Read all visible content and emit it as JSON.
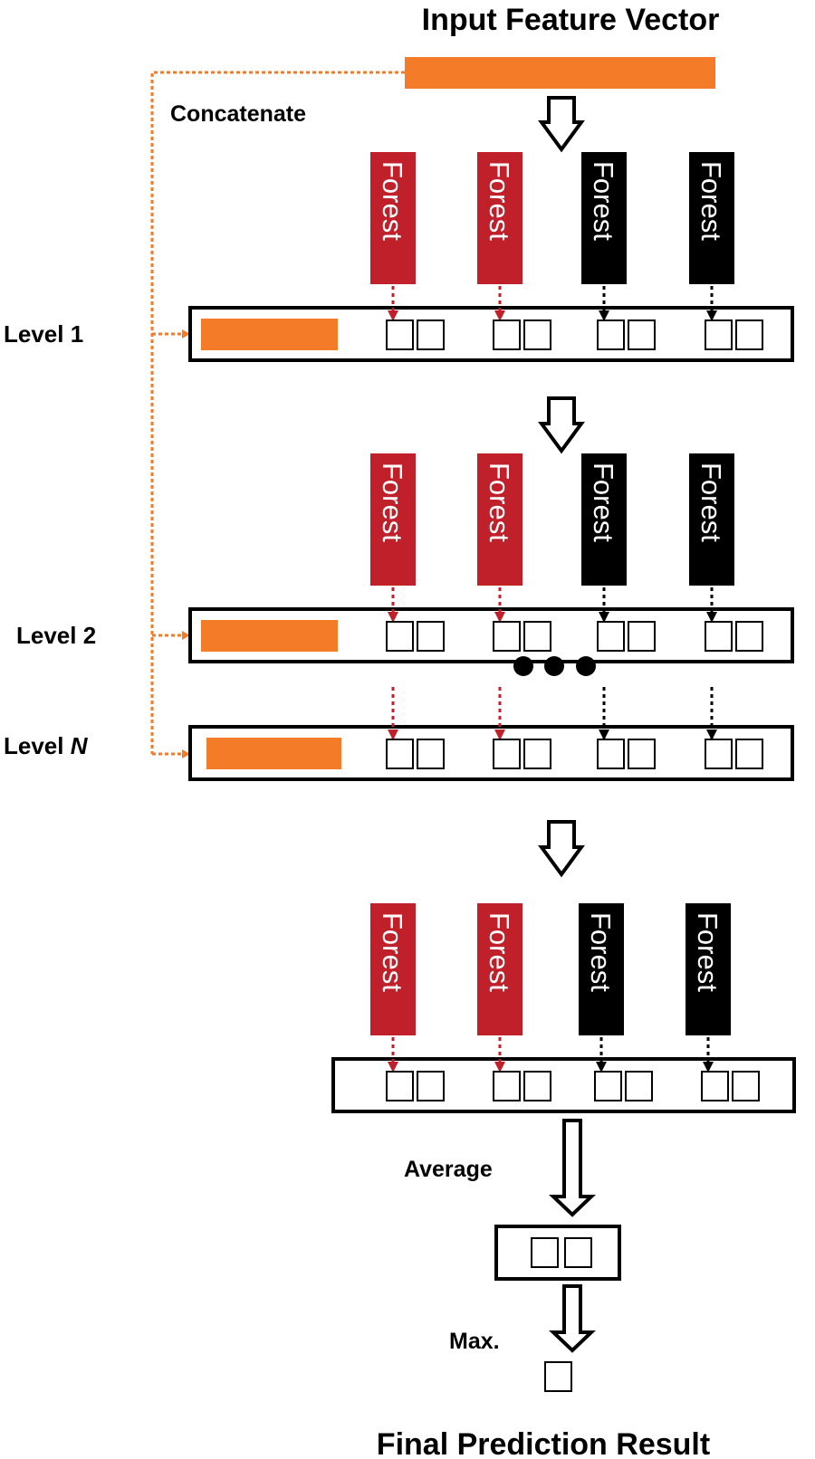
{
  "title": "Input Feature Vector",
  "concatenate_label": "Concatenate",
  "levels": [
    {
      "label_text": "Level ",
      "label_italic": "1"
    },
    {
      "label_text": "Level ",
      "label_italic": "2"
    },
    {
      "label_text": "Level ",
      "label_italic": "N"
    }
  ],
  "forest_label": "Forest",
  "forests": [
    {
      "label": "Forest",
      "color": "#c0202a"
    },
    {
      "label": "Forest",
      "color": "#c0202a"
    },
    {
      "label": "Forest",
      "color": "#000000"
    },
    {
      "label": "Forest",
      "color": "#000000"
    }
  ],
  "average_label": "Average",
  "max_label": "Max.",
  "result_title": "Final Prediction Result",
  "colors": {
    "feature": "#f47b27",
    "red_forest": "#c0202a",
    "black_forest": "#000000"
  }
}
